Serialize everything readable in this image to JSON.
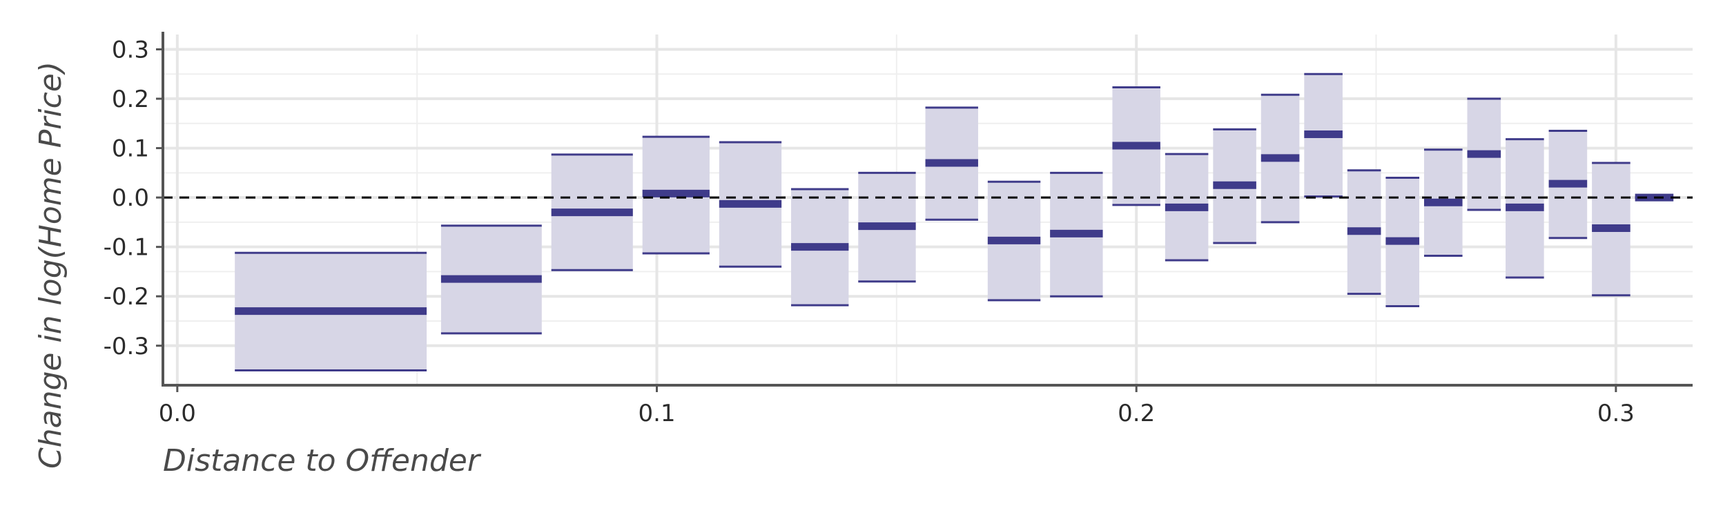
{
  "chart_data": {
    "type": "binned-interval",
    "xlabel": "Distance to Offender",
    "ylabel": "Change in log(Home Price)",
    "xlim": [
      -0.003,
      0.316
    ],
    "ylim": [
      -0.38,
      0.33
    ],
    "x_ticks": [
      0.0,
      0.1,
      0.2,
      0.3
    ],
    "x_tick_labels": [
      "0.0",
      "0.1",
      "0.2",
      "0.3"
    ],
    "y_ticks": [
      -0.3,
      -0.2,
      -0.1,
      0.0,
      0.1,
      0.2,
      0.3
    ],
    "y_tick_labels": [
      "-0.3",
      "-0.2",
      "-0.1",
      "0.0",
      "0.1",
      "0.2",
      "0.3"
    ],
    "grid": true,
    "reference_line": 0.0,
    "colors": {
      "estimate": "#3f3b8a",
      "interval_fill": "#d7d6e6",
      "reference": "#000000"
    },
    "bins": [
      {
        "x0": 0.012,
        "x1": 0.052,
        "est": -0.23,
        "lo": -0.35,
        "hi": -0.112
      },
      {
        "x0": 0.055,
        "x1": 0.076,
        "est": -0.165,
        "lo": -0.275,
        "hi": -0.057
      },
      {
        "x0": 0.078,
        "x1": 0.095,
        "est": -0.03,
        "lo": -0.147,
        "hi": 0.087
      },
      {
        "x0": 0.097,
        "x1": 0.111,
        "est": 0.008,
        "lo": -0.113,
        "hi": 0.123
      },
      {
        "x0": 0.113,
        "x1": 0.126,
        "est": -0.013,
        "lo": -0.14,
        "hi": 0.112
      },
      {
        "x0": 0.128,
        "x1": 0.14,
        "est": -0.1,
        "lo": -0.218,
        "hi": 0.017
      },
      {
        "x0": 0.142,
        "x1": 0.154,
        "est": -0.058,
        "lo": -0.17,
        "hi": 0.05
      },
      {
        "x0": 0.156,
        "x1": 0.167,
        "est": 0.07,
        "lo": -0.045,
        "hi": 0.182
      },
      {
        "x0": 0.169,
        "x1": 0.18,
        "est": -0.087,
        "lo": -0.208,
        "hi": 0.032
      },
      {
        "x0": 0.182,
        "x1": 0.193,
        "est": -0.073,
        "lo": -0.2,
        "hi": 0.05
      },
      {
        "x0": 0.195,
        "x1": 0.205,
        "est": 0.105,
        "lo": -0.015,
        "hi": 0.223
      },
      {
        "x0": 0.206,
        "x1": 0.215,
        "est": -0.02,
        "lo": -0.127,
        "hi": 0.088
      },
      {
        "x0": 0.216,
        "x1": 0.225,
        "est": 0.025,
        "lo": -0.092,
        "hi": 0.138
      },
      {
        "x0": 0.226,
        "x1": 0.234,
        "est": 0.08,
        "lo": -0.05,
        "hi": 0.208
      },
      {
        "x0": 0.235,
        "x1": 0.243,
        "est": 0.128,
        "lo": 0.002,
        "hi": 0.25
      },
      {
        "x0": 0.244,
        "x1": 0.251,
        "est": -0.068,
        "lo": -0.195,
        "hi": 0.055
      },
      {
        "x0": 0.252,
        "x1": 0.259,
        "est": -0.088,
        "lo": -0.22,
        "hi": 0.04
      },
      {
        "x0": 0.26,
        "x1": 0.268,
        "est": -0.01,
        "lo": -0.118,
        "hi": 0.097
      },
      {
        "x0": 0.269,
        "x1": 0.276,
        "est": 0.088,
        "lo": -0.025,
        "hi": 0.2
      },
      {
        "x0": 0.277,
        "x1": 0.285,
        "est": -0.02,
        "lo": -0.162,
        "hi": 0.118
      },
      {
        "x0": 0.286,
        "x1": 0.294,
        "est": 0.028,
        "lo": -0.082,
        "hi": 0.135
      },
      {
        "x0": 0.295,
        "x1": 0.303,
        "est": -0.062,
        "lo": -0.198,
        "hi": 0.07
      },
      {
        "x0": 0.304,
        "x1": 0.312,
        "est": 0.0,
        "lo": 0.0,
        "hi": 0.0
      }
    ]
  }
}
